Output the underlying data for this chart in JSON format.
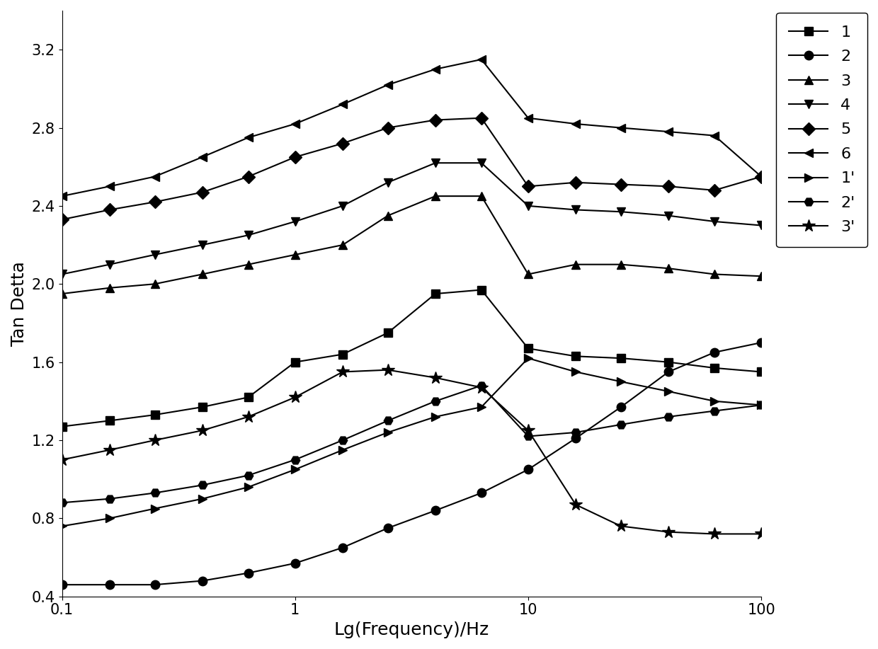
{
  "x_values": [
    0.1,
    0.16,
    0.25,
    0.4,
    0.63,
    1.0,
    1.6,
    2.5,
    4.0,
    6.3,
    10.0,
    16.0,
    25.0,
    40.0,
    63.0,
    100.0
  ],
  "series": {
    "1": [
      1.27,
      1.3,
      1.33,
      1.37,
      1.42,
      1.6,
      1.64,
      1.75,
      1.95,
      1.97,
      1.67,
      1.63,
      1.62,
      1.6,
      1.57,
      1.55
    ],
    "2": [
      0.46,
      0.46,
      0.46,
      0.48,
      0.52,
      0.57,
      0.65,
      0.75,
      0.84,
      0.93,
      1.05,
      1.21,
      1.37,
      1.55,
      1.65,
      1.7
    ],
    "3": [
      1.95,
      1.98,
      2.0,
      2.05,
      2.1,
      2.15,
      2.2,
      2.35,
      2.45,
      2.45,
      2.05,
      2.1,
      2.1,
      2.08,
      2.05,
      2.04
    ],
    "4": [
      2.05,
      2.1,
      2.15,
      2.2,
      2.25,
      2.32,
      2.4,
      2.52,
      2.62,
      2.62,
      2.4,
      2.38,
      2.37,
      2.35,
      2.32,
      2.3
    ],
    "5": [
      2.33,
      2.38,
      2.42,
      2.47,
      2.55,
      2.65,
      2.72,
      2.8,
      2.84,
      2.85,
      2.5,
      2.52,
      2.51,
      2.5,
      2.48,
      2.55
    ],
    "6": [
      2.45,
      2.5,
      2.55,
      2.65,
      2.75,
      2.82,
      2.92,
      3.02,
      3.1,
      3.15,
      2.85,
      2.82,
      2.8,
      2.78,
      2.76,
      2.55
    ],
    "1p": [
      0.76,
      0.8,
      0.85,
      0.9,
      0.96,
      1.05,
      1.15,
      1.24,
      1.32,
      1.37,
      1.62,
      1.55,
      1.5,
      1.45,
      1.4,
      1.38
    ],
    "2p": [
      0.88,
      0.9,
      0.93,
      0.97,
      1.02,
      1.1,
      1.2,
      1.3,
      1.4,
      1.48,
      1.22,
      1.24,
      1.28,
      1.32,
      1.35,
      1.38
    ],
    "3p": [
      1.1,
      1.15,
      1.2,
      1.25,
      1.32,
      1.42,
      1.55,
      1.56,
      1.52,
      1.47,
      1.25,
      0.87,
      0.76,
      0.73,
      0.72,
      0.72
    ]
  },
  "markers": {
    "1": "s",
    "2": "o",
    "3": "^",
    "4": "v",
    "5": "D",
    "6": "<",
    "1p": ">",
    "2p": "H",
    "3p": "*"
  },
  "labels": {
    "1": "1",
    "2": "2",
    "3": "3",
    "4": "4",
    "5": "5",
    "6": "6",
    "1p": "1'",
    "2p": "2'",
    "3p": "3'"
  },
  "xlabel": "Lg(Frequency)/Hz",
  "ylabel": "Tan Detta",
  "xlim": [
    0.1,
    100
  ],
  "ylim": [
    0.4,
    3.4
  ],
  "yticks": [
    0.4,
    0.8,
    1.2,
    1.6,
    2.0,
    2.4,
    2.8,
    3.2
  ],
  "xticks": [
    0.1,
    1,
    10,
    100
  ],
  "xtick_labels": [
    "0.1",
    "1",
    "10",
    "100"
  ],
  "markersize": 9,
  "star_markersize": 13,
  "linewidth": 1.5,
  "color": "black",
  "fontsize_label": 18,
  "fontsize_tick": 15,
  "fontsize_legend": 16,
  "background_color": "#ffffff"
}
